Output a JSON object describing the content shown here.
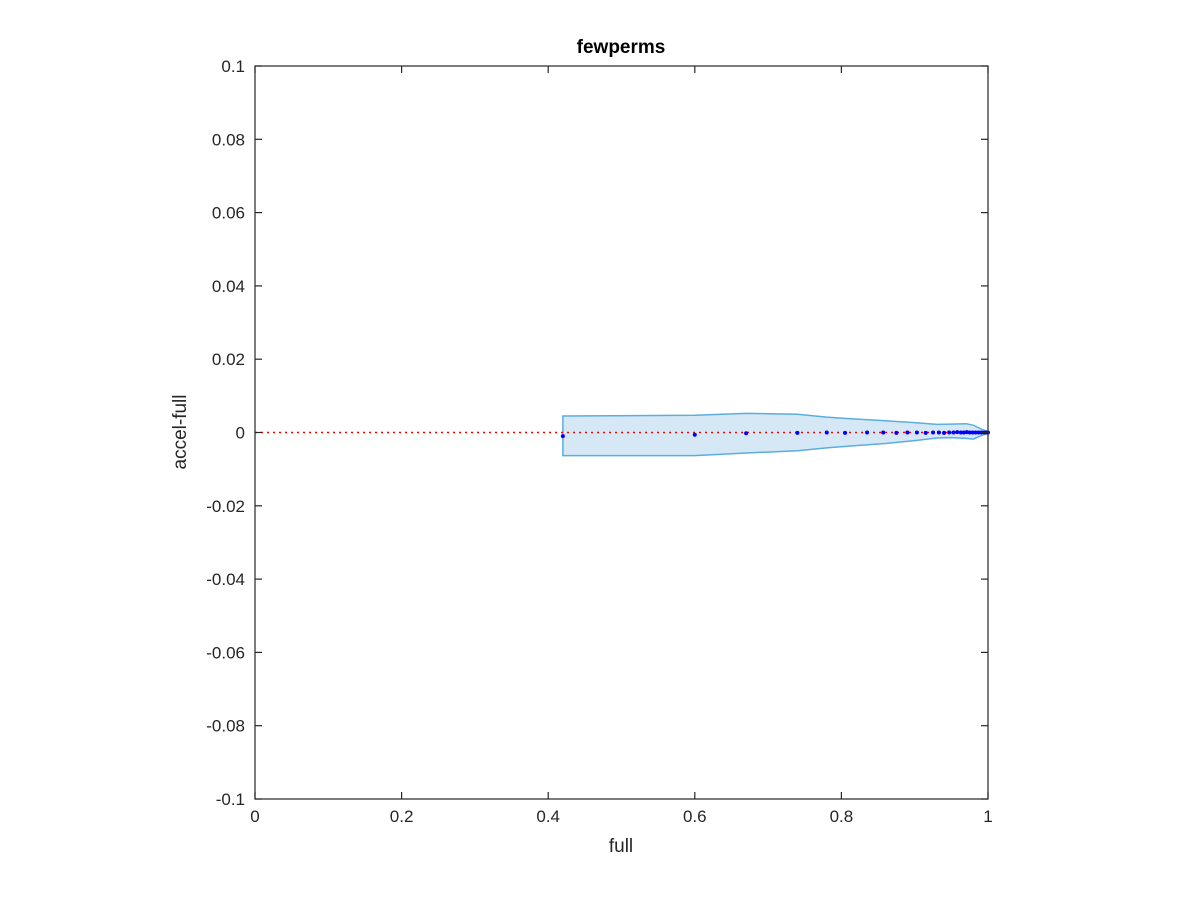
{
  "chart_data": {
    "type": "scatter",
    "title": "fewperms",
    "xlabel": "full",
    "ylabel": "accel-full",
    "xlim": [
      0,
      1
    ],
    "ylim": [
      -0.1,
      0.1
    ],
    "xticks": [
      "0",
      "0.2",
      "0.4",
      "0.6",
      "0.8",
      "1"
    ],
    "yticks": [
      "-0.1",
      "-0.08",
      "-0.06",
      "-0.04",
      "-0.02",
      "0",
      "0.02",
      "0.04",
      "0.06",
      "0.08",
      "0.1"
    ],
    "grid": false,
    "reference_line": {
      "y": 0,
      "style": "dotted",
      "color": "#ff0000"
    },
    "band": {
      "color": "#5aaee0",
      "fill": "#d6e8f5",
      "x": [
        0.42,
        0.6,
        0.67,
        0.74,
        0.78,
        0.81,
        0.86,
        0.9,
        0.93,
        0.95,
        0.97,
        0.98,
        0.99,
        1.0
      ],
      "upper": [
        0.0045,
        0.0047,
        0.0052,
        0.005,
        0.0042,
        0.0038,
        0.0032,
        0.0027,
        0.0022,
        0.0023,
        0.0024,
        0.002,
        0.001,
        0.0002
      ],
      "lower": [
        -0.0063,
        -0.0063,
        -0.0056,
        -0.005,
        -0.0042,
        -0.0037,
        -0.003,
        -0.0022,
        -0.0015,
        -0.0014,
        -0.0016,
        -0.0018,
        -0.0009,
        -0.0002
      ]
    },
    "points": {
      "color": "#0000ff",
      "x": [
        0.42,
        0.6,
        0.67,
        0.74,
        0.78,
        0.805,
        0.835,
        0.857,
        0.875,
        0.89,
        0.903,
        0.915,
        0.925,
        0.933,
        0.94,
        0.947,
        0.953,
        0.958,
        0.963,
        0.967,
        0.971,
        0.975,
        0.979,
        0.983,
        0.987,
        0.991,
        0.995,
        0.998,
        1.0
      ],
      "y": [
        -0.001,
        -0.0006,
        -0.0002,
        -0.0001,
        0.0,
        -0.0001,
        0.0,
        0.0,
        -0.0001,
        0.0,
        0.0,
        -0.0001,
        0.0,
        0.0,
        -0.0001,
        0.0,
        0.0,
        0.0001,
        0.0,
        0.0,
        0.0001,
        0.0,
        0.0,
        0.0,
        0.0,
        0.0,
        0.0,
        0.0,
        0.0
      ]
    }
  }
}
